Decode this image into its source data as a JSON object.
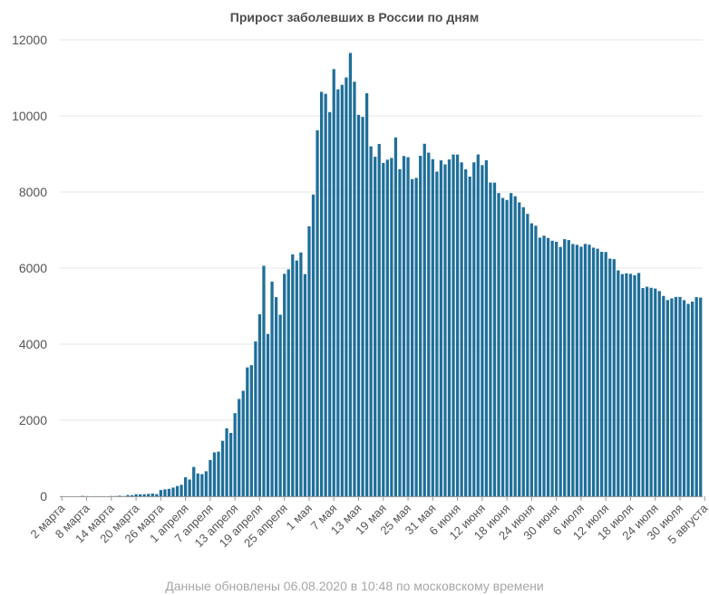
{
  "chart_title": "Прирост заболевших в России по дням",
  "footer_note": "Данные обновлены 06.08.2020 в 10:48 по московскому времени",
  "chart_data": {
    "type": "bar",
    "title": "Прирост заболевших в России по дням",
    "xlabel": "",
    "ylabel": "",
    "ylim": [
      0,
      12000
    ],
    "yticks": [
      0,
      2000,
      4000,
      6000,
      8000,
      10000,
      12000
    ],
    "grid": true,
    "legend": "none",
    "bar_color": "#1f6f9a",
    "grid_color": "#e6e6e6",
    "x_tick_labels": [
      "2 марта",
      "8 марта",
      "14 марта",
      "20 марта",
      "26 марта",
      "1 апреля",
      "7 апреля",
      "13 апреля",
      "19 апреля",
      "25 апреля",
      "1 мая",
      "7 мая",
      "13 мая",
      "19 мая",
      "25 мая",
      "31 мая",
      "6 июня",
      "12 июня",
      "18 июня",
      "24 июня",
      "30 июня",
      "6 июля",
      "12 июля",
      "18 июля",
      "24 июля",
      "30 июля",
      "5 августа"
    ],
    "x_tick_every": 6,
    "values": [
      3,
      0,
      0,
      0,
      0,
      10,
      4,
      0,
      3,
      3,
      2,
      0,
      7,
      6,
      15,
      6,
      33,
      30,
      54,
      52,
      53,
      63,
      71,
      57,
      163,
      182,
      196,
      228,
      270,
      302,
      501,
      440,
      771,
      601,
      582,
      658,
      954,
      1154,
      1175,
      1459,
      1786,
      1667,
      2186,
      2558,
      2774,
      3388,
      3448,
      4070,
      4785,
      6060,
      4268,
      5642,
      5236,
      4774,
      5849,
      5966,
      6361,
      6198,
      6411,
      5841,
      7099,
      7933,
      9623,
      10633,
      10581,
      10102,
      11231,
      10699,
      10817,
      11012,
      11656,
      10899,
      10028,
      9974,
      10598,
      9200,
      8926,
      9263,
      8764,
      8849,
      8894,
      9434,
      8599,
      8946,
      8915,
      8338,
      8371,
      8952,
      9268,
      9035,
      8863,
      8536,
      8831,
      8726,
      8855,
      8985,
      8984,
      8779,
      8595,
      8404,
      8779,
      8987,
      8706,
      8835,
      8248,
      8246,
      7972,
      7843,
      7790,
      7972,
      7889,
      7728,
      7600,
      7425,
      7176,
      7113,
      6800,
      6852,
      6791,
      6719,
      6693,
      6556,
      6760,
      6736,
      6632,
      6611,
      6562,
      6635,
      6615,
      6537,
      6509,
      6428,
      6422,
      6248,
      6234,
      5940,
      5842,
      5862,
      5848,
      5811,
      5871,
      5475,
      5509,
      5482,
      5462,
      5395,
      5267,
      5159,
      5204,
      5241,
      5241,
      5157,
      5058,
      5118,
      5236,
      5225
    ]
  }
}
